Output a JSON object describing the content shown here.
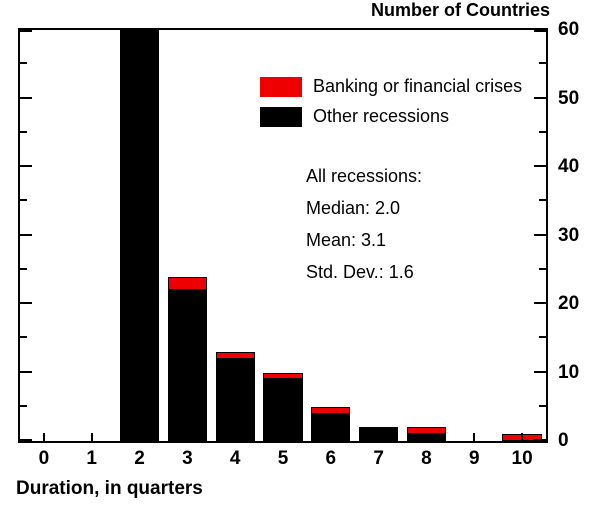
{
  "title": "Number of Countries",
  "xlabel": "Duration, in quarters",
  "legend": [
    {
      "label": "Banking or financial crises",
      "color": "#ee0000"
    },
    {
      "label": "Other recessions",
      "color": "#000000"
    }
  ],
  "annotation": {
    "lines": [
      "All recessions:",
      "Median: 2.0",
      "Mean: 3.1",
      "Std. Dev.: 1.6"
    ]
  },
  "chart_data": {
    "type": "bar",
    "stacked": true,
    "title": "Number of Countries",
    "xlabel": "Duration, in quarters",
    "ylabel": "Number of Countries",
    "categories": [
      "0",
      "1",
      "2",
      "3",
      "4",
      "5",
      "6",
      "7",
      "8",
      "9",
      "10"
    ],
    "series": [
      {
        "name": "Other recessions",
        "color": "#000000",
        "values": [
          0,
          0,
          60,
          22,
          12,
          9,
          4,
          2,
          1,
          0,
          0
        ]
      },
      {
        "name": "Banking or financial crises",
        "color": "#ee0000",
        "values": [
          0,
          0,
          0,
          2,
          1,
          1,
          1,
          0,
          1,
          0,
          1
        ]
      }
    ],
    "ylim": [
      0,
      60
    ],
    "ytick_major": 10,
    "ytick_minor": 5,
    "ylabel_side": "right",
    "legend_position": "upper-center-inside",
    "grid": false
  }
}
